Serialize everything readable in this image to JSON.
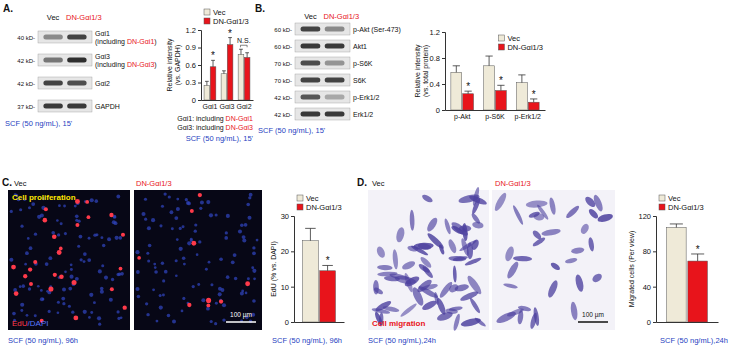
{
  "panels": {
    "A": {
      "label": "A.",
      "lanes": [
        "Vec",
        "DN-Gαi1/3"
      ],
      "rows": [
        {
          "mw": "40 kD-",
          "name": "Gαi1",
          "sub": [
            "(including ",
            "DN-Gαi1",
            ")"
          ]
        },
        {
          "mw": "42 kD-",
          "name": "Gαi3",
          "sub": [
            "(including ",
            "DN-Gαi3",
            ")"
          ]
        },
        {
          "mw": "42 kD-",
          "name": "Gαi2"
        },
        {
          "mw": "37 kD-",
          "name": "GAPDH"
        }
      ],
      "caption": "SCF (50 ng/mL), 15'",
      "notes": [
        [
          "Gαi1: including ",
          "DN-Gαi1"
        ],
        [
          "Gαi3: including ",
          "DN-Gαi3"
        ]
      ],
      "chart_caption": "SCF (50 ng/mL), 15'"
    },
    "B": {
      "label": "B.",
      "lanes": [
        "Vec",
        "DN-Gαi1/3"
      ],
      "rows": [
        {
          "mw": "60 kD-",
          "name": "p-Akt (Ser-473)"
        },
        {
          "mw": "60 kD-",
          "name": "Akt1"
        },
        {
          "mw": "70 kD-",
          "name": "p-S6K"
        },
        {
          "mw": "70 kD-",
          "name": "S6K"
        },
        {
          "mw": "42 kD-",
          "name": "p-Erk1/2"
        },
        {
          "mw": "42 kD-",
          "name": "Erk1/2"
        }
      ],
      "caption": "SCF (50 ng/mL), 15'"
    },
    "C": {
      "label": "C.",
      "lanes": [
        "Vec",
        "DN-Gαi1/3"
      ],
      "image_title": "Cell proliferation",
      "stain": [
        "EdU",
        "/DAPI"
      ],
      "scale_bar": "100 µm",
      "caption": "SCF (50 ng/mL), 96h",
      "chart_caption": "SCF (50 ng/mL), 96h"
    },
    "D": {
      "label": "D.",
      "lanes": [
        "Vec",
        "DN-Gαi1/3"
      ],
      "image_title": "Cell migration",
      "scale_bar": "100 µm",
      "caption": "SCF (50 ng/mL),24h",
      "chart_caption": "SCF (50 ng/mL),24h"
    }
  },
  "chart_data": [
    {
      "type": "bar",
      "y_label": [
        "Relative intensity",
        "(vs. GAPDH)"
      ],
      "categories": [
        "Gαi1",
        "Gαi3",
        "Gαi2"
      ],
      "series": [
        {
          "name": "Vec",
          "color": "#efead8",
          "values": [
            0.25,
            0.45,
            0.78
          ],
          "errors": [
            0.07,
            0.05,
            0.09
          ]
        },
        {
          "name": "DN-Gαi1/3",
          "color": "#e8141b",
          "values": [
            0.57,
            0.95,
            0.73
          ],
          "errors": [
            0.11,
            0.12,
            0.08
          ],
          "significance": [
            "*",
            "*",
            null
          ]
        }
      ],
      "annotations": [
        {
          "text": "N.S.",
          "category": 2
        }
      ],
      "ylim": [
        0,
        1.2
      ],
      "yticks": [
        0,
        0.3,
        0.6,
        0.9,
        1.2
      ],
      "legend": "top"
    },
    {
      "type": "bar",
      "y_label": [
        "Relative intensity",
        "(vs. total protein)"
      ],
      "categories": [
        "p-Akt",
        "p-S6K",
        "p-Erk1/2"
      ],
      "series": [
        {
          "name": "Vec",
          "color": "#efead8",
          "values": [
            0.58,
            0.68,
            0.42
          ],
          "errors": [
            0.1,
            0.15,
            0.12
          ]
        },
        {
          "name": "DN-Gαi1/3",
          "color": "#e8141b",
          "values": [
            0.25,
            0.3,
            0.12
          ],
          "errors": [
            0.04,
            0.08,
            0.05
          ],
          "significance": [
            "*",
            "*",
            "*"
          ]
        }
      ],
      "ylim": [
        0,
        1.2
      ],
      "yticks": [
        0,
        0.4,
        0.8,
        1.2
      ],
      "legend": "top-right"
    },
    {
      "type": "bar",
      "y_label": "EdU (% vs. DAPI)",
      "categories": [
        null
      ],
      "series": [
        {
          "name": "Vec",
          "color": "#efead8",
          "values": [
            23
          ],
          "errors": [
            3.5
          ]
        },
        {
          "name": "DN-Gαi1/3",
          "color": "#e8141b",
          "values": [
            14.5
          ],
          "errors": [
            1.5
          ],
          "significance": [
            "*"
          ]
        }
      ],
      "ylim": [
        0,
        30
      ],
      "yticks": [
        0,
        10,
        20,
        30
      ],
      "legend": "top"
    },
    {
      "type": "bar",
      "y_label": "Migrated cells (Per view)",
      "categories": [
        null
      ],
      "series": [
        {
          "name": "Vec",
          "color": "#efead8",
          "values": [
            107
          ],
          "errors": [
            4
          ]
        },
        {
          "name": "DN-Gαi1/3",
          "color": "#e8141b",
          "values": [
            69
          ],
          "errors": [
            8
          ],
          "significance": [
            "*"
          ]
        }
      ],
      "ylim": [
        0,
        120
      ],
      "yticks": [
        0,
        40,
        80,
        120
      ],
      "legend": "top"
    }
  ]
}
